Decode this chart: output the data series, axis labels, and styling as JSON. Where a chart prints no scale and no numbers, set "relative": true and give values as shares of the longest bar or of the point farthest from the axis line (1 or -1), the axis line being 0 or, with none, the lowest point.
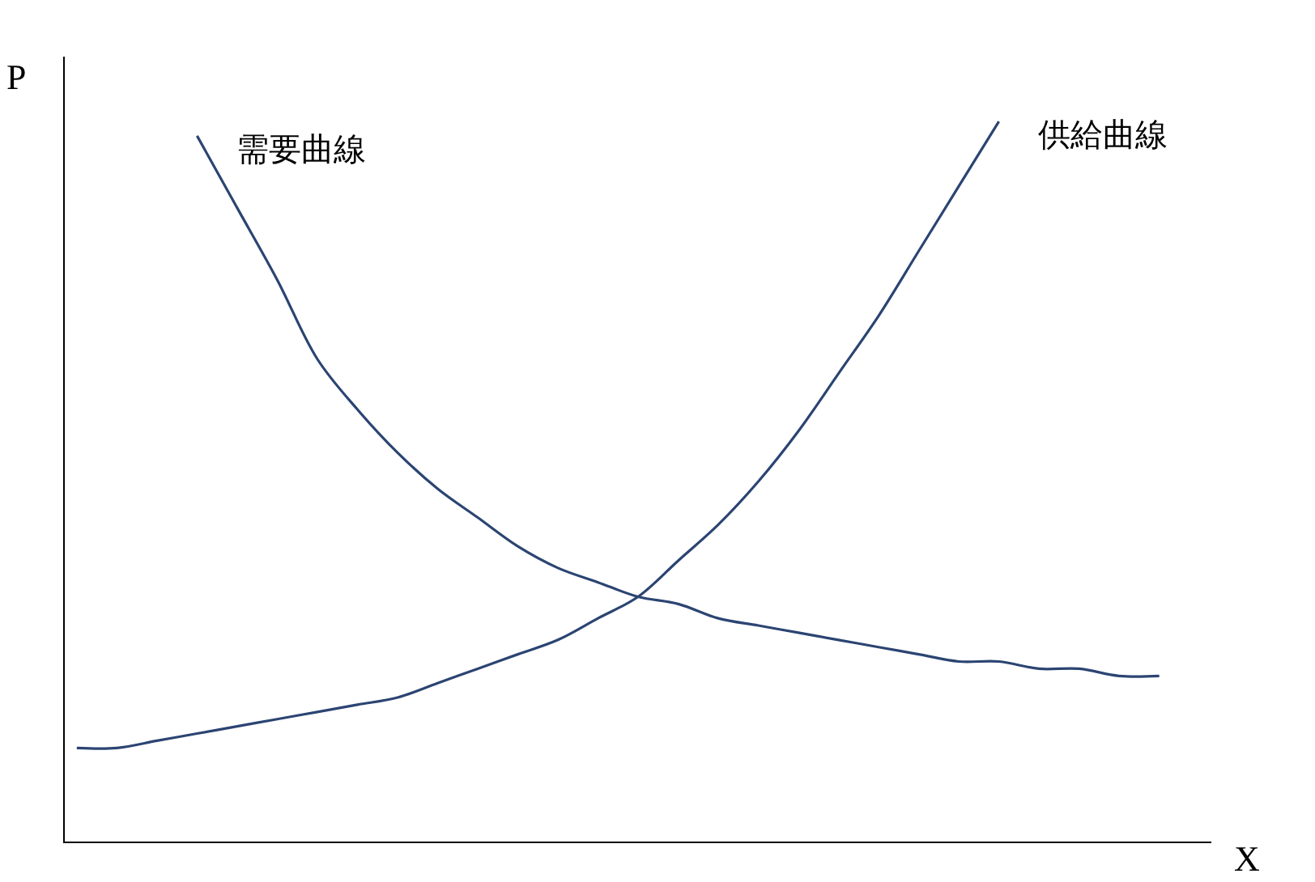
{
  "chart_data": {
    "type": "line",
    "relative": true,
    "xlabel": "X",
    "ylabel": "P",
    "tick_labels": false,
    "categories": [
      null,
      null,
      null,
      null,
      null,
      null,
      null,
      null,
      null,
      null,
      null,
      null,
      null,
      null,
      null,
      null,
      null,
      null,
      null,
      null,
      null,
      null,
      null,
      null,
      null,
      null,
      null,
      null
    ],
    "series": [
      {
        "name": "需要曲線",
        "color": "#2b4472",
        "values": [
          null,
          null,
          null,
          0.98,
          0.88,
          0.78,
          0.67,
          0.6,
          0.54,
          0.49,
          0.45,
          0.41,
          0.38,
          0.36,
          0.34,
          0.33,
          0.31,
          0.3,
          0.29,
          0.28,
          0.27,
          0.26,
          0.25,
          0.25,
          0.24,
          0.24,
          0.23,
          0.23
        ]
      },
      {
        "name": "供給曲線",
        "color": "#2b4472",
        "values": [
          0.13,
          0.13,
          0.14,
          0.15,
          0.16,
          0.17,
          0.18,
          0.19,
          0.2,
          0.22,
          0.24,
          0.26,
          0.28,
          0.31,
          0.34,
          0.39,
          0.44,
          0.5,
          0.57,
          0.65,
          0.73,
          0.82,
          0.91,
          1,
          null,
          null,
          null,
          null
        ]
      }
    ]
  }
}
